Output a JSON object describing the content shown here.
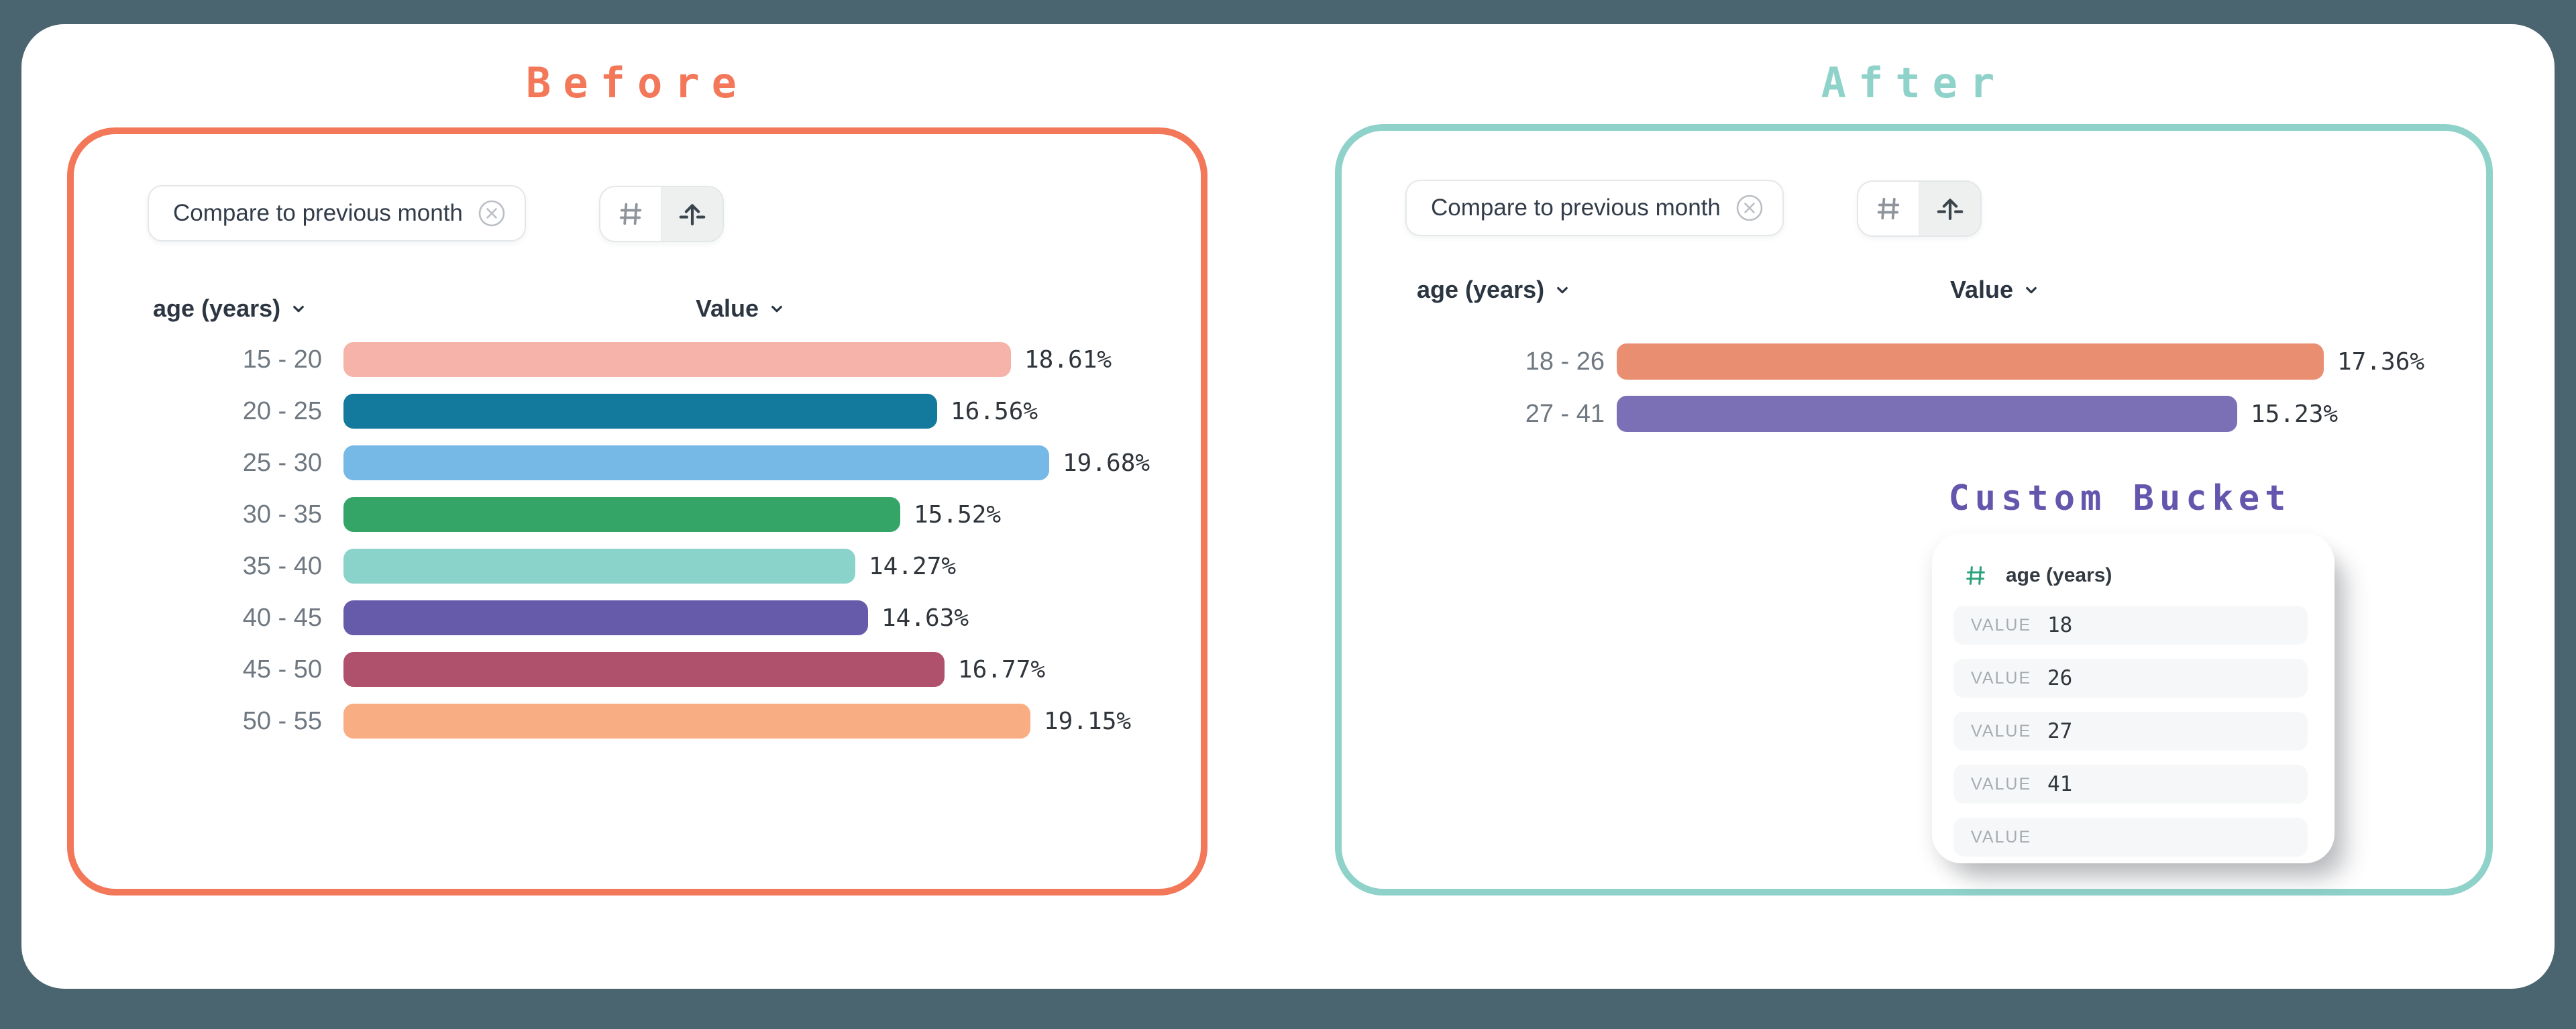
{
  "panels": {
    "before": {
      "title": "Before",
      "accent_color": "#f3785a",
      "chip": {
        "label": "Compare to previous month",
        "dismiss_icon": "circle-x-icon"
      },
      "toolbar": {
        "hash_button": "numeric-bucket",
        "spread_button": "custom-bucket",
        "selected": "spread_button"
      },
      "dimension_header": "age (years)",
      "measure_header": "Value"
    },
    "after": {
      "title": "After",
      "accent_color": "#8fd2ca",
      "chip": {
        "label": "Compare to previous month",
        "dismiss_icon": "circle-x-icon"
      },
      "toolbar": {
        "hash_button": "numeric-bucket",
        "spread_button": "custom-bucket",
        "selected": "spread_button"
      },
      "dimension_header": "age (years)",
      "measure_header": "Value",
      "custom_bucket": {
        "title": "Custom Bucket",
        "title_color": "#6456ad",
        "field_name": "age (years)",
        "field_icon": "hash-icon",
        "field_icon_color": "#2ba27c",
        "rows": [
          {
            "label": "VALUE",
            "value": "18"
          },
          {
            "label": "VALUE",
            "value": "26"
          },
          {
            "label": "VALUE",
            "value": "27"
          },
          {
            "label": "VALUE",
            "value": "41"
          },
          {
            "label": "VALUE",
            "value": ""
          }
        ]
      }
    }
  },
  "chart_data": [
    {
      "id": "before",
      "type": "bar",
      "orientation": "horizontal",
      "title": "Before",
      "xlabel": "Value",
      "ylabel": "age (years)",
      "categories": [
        "15 - 20",
        "20 - 25",
        "25 - 30",
        "30 - 35",
        "35 - 40",
        "40 - 45",
        "45 - 50",
        "50 - 55"
      ],
      "values": [
        18.61,
        16.56,
        19.68,
        15.52,
        14.27,
        14.63,
        16.77,
        19.15
      ],
      "value_labels": [
        "18.61%",
        "16.56%",
        "19.68%",
        "15.52%",
        "14.27%",
        "14.63%",
        "16.77%",
        "19.15%"
      ],
      "colors": [
        "#f6b3aa",
        "#147a9d",
        "#76b9e6",
        "#34a567",
        "#8ad3ca",
        "#665aab",
        "#af506c",
        "#f9ad83"
      ]
    },
    {
      "id": "after",
      "type": "bar",
      "orientation": "horizontal",
      "title": "After",
      "xlabel": "Value",
      "ylabel": "age (years)",
      "categories": [
        "18 - 26",
        "27 - 41"
      ],
      "values": [
        17.36,
        15.23
      ],
      "value_labels": [
        "17.36%",
        "15.23%"
      ],
      "colors": [
        "#e98e71",
        "#7b70b5"
      ]
    }
  ]
}
